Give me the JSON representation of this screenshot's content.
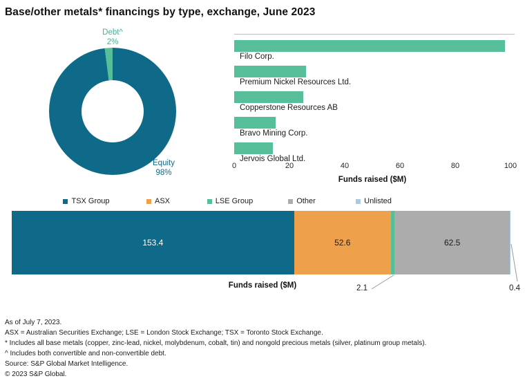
{
  "title": "Base/other metals* financings by type, exchange, June 2023",
  "colors": {
    "teal": "#0e6a88",
    "green": "#57be9a",
    "orange": "#efa04b",
    "gray": "#acacac",
    "light_blue": "#a7c9e2",
    "debt_label_text": "#43b294",
    "equity_label_text": "#0e6a88",
    "leader_line": "#999999",
    "chart_border": "#bfbfbf"
  },
  "donut": {
    "debt_label": [
      "Debt^",
      "2%"
    ],
    "equity_label": [
      "Equity",
      "98%"
    ]
  },
  "chart_data": [
    {
      "type": "pie",
      "subtype": "donut",
      "labels": [
        "Equity",
        "Debt^"
      ],
      "values": [
        98,
        2
      ],
      "unit": "%",
      "colors": [
        "#0e6a88",
        "#57be9a"
      ]
    },
    {
      "type": "bar",
      "orientation": "horizontal",
      "categories": [
        "Filo Corp.",
        "Premium Nickel Resources Ltd.",
        "Copperstone Resources AB",
        "Bravo Mining Corp.",
        "Jervois Global Ltd."
      ],
      "values": [
        98,
        26,
        25,
        15,
        14
      ],
      "xlabel": "Funds raised ($M)",
      "xlim": [
        0,
        100
      ],
      "xticks": [
        0,
        20,
        40,
        60,
        80,
        100
      ],
      "bar_color": "#57be9a",
      "grid": false
    },
    {
      "type": "bar",
      "subtype": "stacked-horizontal",
      "xlabel": "Funds raised ($M)",
      "series": [
        {
          "name": "TSX Group",
          "value": 153.4,
          "label": "153.4",
          "color": "#0e6a88",
          "label_inside": true,
          "label_color": "#ffffff"
        },
        {
          "name": "ASX",
          "value": 52.6,
          "label": "52.6",
          "color": "#efa04b",
          "label_inside": true,
          "label_color": "#1a1a1a"
        },
        {
          "name": "LSE Group",
          "value": 2.1,
          "label": "2.1",
          "color": "#57be9a",
          "label_inside": false
        },
        {
          "name": "Other",
          "value": 62.5,
          "label": "62.5",
          "color": "#acacac",
          "label_inside": true,
          "label_color": "#1a1a1a"
        },
        {
          "name": "Unlisted",
          "value": 0.4,
          "label": "0.4",
          "color": "#a7c9e2",
          "label_inside": false
        }
      ],
      "legend_position": "top"
    }
  ],
  "footnotes": [
    "As of July 7, 2023.",
    "ASX = Australian Securities Exchange; LSE = London Stock Exchange; TSX = Toronto Stock Exchange.",
    "* Includes all base metals (copper, zinc-lead, nickel, molybdenum, cobalt, tin) and nongold precious metals (silver, platinum group metals).",
    "^ Includes both convertible and non-convertible debt.",
    "Source: S&P Global Market Intelligence.",
    "© 2023 S&P Global."
  ]
}
